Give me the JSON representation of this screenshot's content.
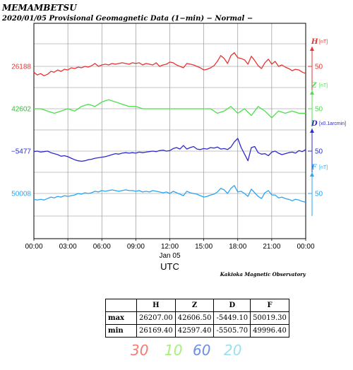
{
  "header": {
    "station": "MEMAMBETSU",
    "subtitle": "2020/01/05  Provisional Geomagnetic Data (1−min)  − Normal −"
  },
  "chart_data": {
    "type": "line",
    "x_ticks": [
      "00:00",
      "03:00",
      "06:00",
      "09:00",
      "12:00",
      "15:00",
      "18:00",
      "21:00",
      "00:00"
    ],
    "x_date_label": "Jan 05",
    "xlabel": "UTC",
    "grid": true,
    "series": [
      {
        "name": "H",
        "unit": "[nT]",
        "color": "#e8322f",
        "left_label": "26188",
        "right_tick": "50",
        "x": [
          0,
          0.3,
          0.6,
          0.9,
          1.2,
          1.5,
          1.8,
          2.1,
          2.4,
          2.7,
          3.0,
          3.3,
          3.6,
          3.9,
          4.2,
          4.5,
          4.8,
          5.1,
          5.4,
          5.7,
          6.0,
          6.3,
          6.6,
          6.9,
          7.2,
          7.5,
          7.8,
          8.1,
          8.4,
          8.7,
          9.0,
          9.3,
          9.6,
          9.9,
          10.2,
          10.5,
          10.8,
          11.1,
          11.4,
          11.7,
          12.0,
          12.3,
          12.6,
          12.9,
          13.2,
          13.5,
          13.8,
          14.1,
          14.4,
          14.7,
          15.0,
          15.3,
          15.6,
          15.9,
          16.2,
          16.5,
          16.8,
          17.1,
          17.4,
          17.7,
          18.0,
          18.3,
          18.6,
          18.9,
          19.2,
          19.5,
          19.8,
          20.1,
          20.4,
          20.7,
          21.0,
          21.3,
          21.6,
          21.9,
          22.2,
          22.5,
          22.8,
          23.1,
          23.4,
          23.7,
          24.0
        ],
        "y": [
          26180,
          26176,
          26178,
          26175,
          26177,
          26181,
          26180,
          26183,
          26181,
          26184,
          26183,
          26186,
          26185,
          26187,
          26186,
          26188,
          26187,
          26189,
          26192,
          26188,
          26190,
          26191,
          26190,
          26192,
          26191,
          26192,
          26193,
          26192,
          26191,
          26193,
          26192,
          26193,
          26190,
          26192,
          26191,
          26190,
          26193,
          26188,
          26190,
          26191,
          26194,
          26193,
          26190,
          26188,
          26186,
          26192,
          26191,
          26190,
          26188,
          26186,
          26183,
          26184,
          26186,
          26189,
          26195,
          26203,
          26199,
          26192,
          26203,
          26207,
          26200,
          26199,
          26197,
          26191,
          26202,
          26196,
          26189,
          26185,
          26193,
          26198,
          26191,
          26195,
          26188,
          26190,
          26187,
          26185,
          26182,
          26184,
          26183,
          26180,
          26178
        ]
      },
      {
        "name": "Z",
        "unit": "[nT]",
        "color": "#4be04b",
        "left_label": "42602",
        "right_tick": "50",
        "x": [
          0,
          0.6,
          1.2,
          1.8,
          2.4,
          3.0,
          3.6,
          4.2,
          4.8,
          5.4,
          6.0,
          6.6,
          7.2,
          7.8,
          8.4,
          9.0,
          9.6,
          10.2,
          10.8,
          11.4,
          12.0,
          12.6,
          13.2,
          13.8,
          14.4,
          15.0,
          15.6,
          16.2,
          16.8,
          17.4,
          18.0,
          18.6,
          19.2,
          19.8,
          20.4,
          21.0,
          21.6,
          22.2,
          22.8,
          23.4,
          24.0
        ],
        "y": [
          42602,
          42602,
          42601,
          42600,
          42601,
          42602,
          42601,
          42603,
          42604,
          42603,
          42605,
          42606,
          42605,
          42604,
          42603,
          42603,
          42602,
          42602,
          42602,
          42602,
          42602,
          42602,
          42602,
          42602,
          42602,
          42602,
          42602,
          42600,
          42601,
          42603,
          42600,
          42602,
          42599,
          42603,
          42601,
          42598,
          42601,
          42600,
          42601,
          42600,
          42600
        ]
      },
      {
        "name": "D",
        "unit": "[x0.1arcmin]",
        "color": "#2b2bd0",
        "left_label": "−5477",
        "right_tick": "50",
        "x": [
          0,
          0.3,
          0.6,
          0.9,
          1.2,
          1.5,
          1.8,
          2.1,
          2.4,
          2.7,
          3.0,
          3.3,
          3.6,
          3.9,
          4.2,
          4.5,
          4.8,
          5.1,
          5.4,
          5.7,
          6.0,
          6.3,
          6.6,
          6.9,
          7.2,
          7.5,
          7.8,
          8.1,
          8.4,
          8.7,
          9.0,
          9.3,
          9.6,
          9.9,
          10.2,
          10.5,
          10.8,
          11.1,
          11.4,
          11.7,
          12.0,
          12.3,
          12.6,
          12.9,
          13.2,
          13.5,
          13.8,
          14.1,
          14.4,
          14.7,
          15.0,
          15.3,
          15.6,
          15.9,
          16.2,
          16.5,
          16.8,
          17.1,
          17.4,
          17.7,
          18.0,
          18.3,
          18.6,
          18.9,
          19.2,
          19.5,
          19.8,
          20.1,
          20.4,
          20.7,
          21.0,
          21.3,
          21.6,
          21.9,
          22.2,
          22.5,
          22.8,
          23.1,
          23.4,
          23.7,
          24.0
        ],
        "y": [
          -5478,
          -5477,
          -5479,
          -5478,
          -5477,
          -5480,
          -5482,
          -5484,
          -5487,
          -5486,
          -5488,
          -5491,
          -5494,
          -5496,
          -5497,
          -5496,
          -5494,
          -5493,
          -5491,
          -5490,
          -5489,
          -5488,
          -5486,
          -5484,
          -5482,
          -5483,
          -5481,
          -5480,
          -5481,
          -5480,
          -5481,
          -5479,
          -5480,
          -5479,
          -5478,
          -5477,
          -5478,
          -5476,
          -5475,
          -5477,
          -5476,
          -5472,
          -5470,
          -5473,
          -5466,
          -5473,
          -5470,
          -5468,
          -5473,
          -5474,
          -5472,
          -5473,
          -5470,
          -5471,
          -5469,
          -5473,
          -5472,
          -5474,
          -5469,
          -5459,
          -5452,
          -5470,
          -5483,
          -5496,
          -5470,
          -5468,
          -5480,
          -5483,
          -5482,
          -5486,
          -5479,
          -5477,
          -5481,
          -5484,
          -5482,
          -5480,
          -5479,
          -5481,
          -5476,
          -5478,
          -5474
        ]
      },
      {
        "name": "F",
        "unit": "[nT]",
        "color": "#2aa4f4",
        "left_label": "50008",
        "right_tick": "50",
        "x": [
          0,
          0.3,
          0.6,
          0.9,
          1.2,
          1.5,
          1.8,
          2.1,
          2.4,
          2.7,
          3.0,
          3.3,
          3.6,
          3.9,
          4.2,
          4.5,
          4.8,
          5.1,
          5.4,
          5.7,
          6.0,
          6.3,
          6.6,
          6.9,
          7.2,
          7.5,
          7.8,
          8.1,
          8.4,
          8.7,
          9.0,
          9.3,
          9.6,
          9.9,
          10.2,
          10.5,
          10.8,
          11.1,
          11.4,
          11.7,
          12.0,
          12.3,
          12.6,
          12.9,
          13.2,
          13.5,
          13.8,
          14.1,
          14.4,
          14.7,
          15.0,
          15.3,
          15.6,
          15.9,
          16.2,
          16.5,
          16.8,
          17.1,
          17.4,
          17.7,
          18.0,
          18.3,
          18.6,
          18.9,
          19.2,
          19.5,
          19.8,
          20.1,
          20.4,
          20.7,
          21.0,
          21.3,
          21.6,
          21.9,
          22.2,
          22.5,
          22.8,
          23.1,
          23.4,
          23.7,
          24.0
        ],
        "y": [
          50000,
          49999,
          50000,
          49999,
          50001,
          50003,
          50002,
          50004,
          50003,
          50005,
          50004,
          50005,
          50006,
          50008,
          50007,
          50009,
          50008,
          50009,
          50011,
          50010,
          50012,
          50011,
          50012,
          50013,
          50012,
          50011,
          50012,
          50013,
          50012,
          50012,
          50011,
          50012,
          50010,
          50011,
          50010,
          50012,
          50011,
          50010,
          50009,
          50010,
          50008,
          50011,
          50009,
          50007,
          50005,
          50011,
          50009,
          50008,
          50007,
          50005,
          50003,
          50004,
          50006,
          50007,
          50010,
          50015,
          50013,
          50008,
          50015,
          50019,
          50010,
          50011,
          50008,
          50004,
          50014,
          50009,
          50004,
          50001,
          50009,
          50012,
          50006,
          50006,
          50002,
          50003,
          50001,
          50000,
          49998,
          50000,
          49999,
          49997,
          49996
        ]
      }
    ],
    "annotation": "Kakioka Magnetic Observatory",
    "scales": [
      {
        "value": "30",
        "color": "#f17d72"
      },
      {
        "value": "10",
        "color": "#a6f07a"
      },
      {
        "value": "60",
        "color": "#6a8fe6"
      },
      {
        "value": "20",
        "color": "#98e1f0"
      }
    ],
    "table": {
      "headers": [
        "H",
        "Z",
        "D",
        "F"
      ],
      "rows": [
        {
          "label": "max",
          "values": [
            "26207.00",
            "42606.50",
            "-5449.10",
            "50019.30"
          ]
        },
        {
          "label": "min",
          "values": [
            "26169.40",
            "42597.40",
            "-5505.70",
            "49996.40"
          ]
        }
      ]
    }
  }
}
